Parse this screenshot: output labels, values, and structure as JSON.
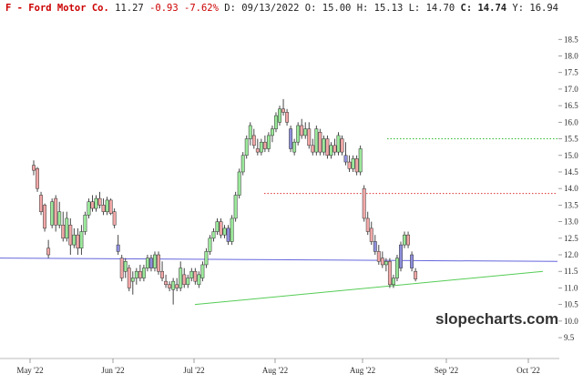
{
  "header": {
    "ticker_prefix": "F - ",
    "name": "Ford Motor Co.",
    "price": "11.27",
    "change": "-0.93",
    "change_pct": "-7.62%",
    "date_label": "D: 09/13/2022",
    "open_label": "O: 15.00",
    "high_label": "H: 15.13",
    "low_label": "L: 14.70",
    "close_label": "C: 14.74",
    "extra_label": "Y: 16.94",
    "name_color": "#cc0000",
    "change_color": "#cc0000"
  },
  "watermark": "slopecharts.com",
  "chart_data": {
    "type": "candlestick",
    "title": "F - Ford Motor Co.",
    "ylim": [
      9.2,
      18.7
    ],
    "y_ticks": [
      "18.5",
      "18.0",
      "17.5",
      "17.0",
      "16.5",
      "16.0",
      "15.5",
      "15.0",
      "14.5",
      "14.0",
      "13.5",
      "13.0",
      "12.5",
      "12.0",
      "11.5",
      "11.0",
      "10.5",
      "10.0",
      "9.5"
    ],
    "x_ticks": [
      "May '22",
      "Jun '22",
      "Jul '22",
      "Aug '22",
      "Aug '22",
      "Sep '22",
      "Oct '22"
    ],
    "grid": false,
    "colors": {
      "up": "#9be89b",
      "down": "#f2a8a8",
      "outside": "#8f8fdd",
      "wick": "#333333"
    },
    "horizontal_lines": [
      {
        "value": 15.5,
        "style": "dotted",
        "color": "#33bb33"
      },
      {
        "value": 13.85,
        "style": "dotted",
        "color": "#dd3333"
      }
    ],
    "trend_lines": [
      {
        "from_index": 0,
        "from_value": 11.9,
        "to_index": 125,
        "to_value": 11.8,
        "color": "#6666dd"
      },
      {
        "from_index": 38,
        "from_value": 10.5,
        "to_index": 114,
        "to_value": 11.5,
        "color": "#55cc55"
      }
    ],
    "candles": [
      {
        "o": 14.7,
        "h": 14.85,
        "l": 14.4,
        "c": 14.55,
        "t": "down"
      },
      {
        "o": 14.6,
        "h": 14.65,
        "l": 13.9,
        "c": 14.0,
        "t": "down"
      },
      {
        "o": 13.8,
        "h": 13.9,
        "l": 13.2,
        "c": 13.3,
        "t": "down"
      },
      {
        "o": 13.5,
        "h": 13.55,
        "l": 12.7,
        "c": 12.8,
        "t": "down"
      },
      {
        "o": 12.2,
        "h": 12.45,
        "l": 11.9,
        "c": 12.0,
        "t": "down"
      },
      {
        "o": 12.9,
        "h": 13.7,
        "l": 12.8,
        "c": 13.6,
        "t": "up"
      },
      {
        "o": 13.7,
        "h": 13.8,
        "l": 12.7,
        "c": 12.9,
        "t": "down"
      },
      {
        "o": 12.9,
        "h": 13.6,
        "l": 12.8,
        "c": 13.3,
        "t": "up"
      },
      {
        "o": 12.9,
        "h": 13.3,
        "l": 12.4,
        "c": 12.5,
        "t": "down"
      },
      {
        "o": 12.5,
        "h": 13.3,
        "l": 12.4,
        "c": 13.1,
        "t": "up"
      },
      {
        "o": 12.9,
        "h": 13.1,
        "l": 12.0,
        "c": 12.3,
        "t": "down"
      },
      {
        "o": 12.3,
        "h": 12.8,
        "l": 12.2,
        "c": 12.6,
        "t": "up"
      },
      {
        "o": 12.6,
        "h": 12.8,
        "l": 12.0,
        "c": 12.2,
        "t": "down"
      },
      {
        "o": 12.2,
        "h": 12.9,
        "l": 12.0,
        "c": 12.7,
        "t": "up"
      },
      {
        "o": 12.7,
        "h": 13.3,
        "l": 12.6,
        "c": 13.2,
        "t": "up"
      },
      {
        "o": 13.2,
        "h": 13.7,
        "l": 13.1,
        "c": 13.6,
        "t": "up"
      },
      {
        "o": 13.6,
        "h": 13.8,
        "l": 13.3,
        "c": 13.4,
        "t": "down"
      },
      {
        "o": 13.4,
        "h": 13.8,
        "l": 13.3,
        "c": 13.7,
        "t": "up"
      },
      {
        "o": 13.7,
        "h": 13.9,
        "l": 13.4,
        "c": 13.5,
        "t": "down"
      },
      {
        "o": 13.5,
        "h": 13.7,
        "l": 13.2,
        "c": 13.3,
        "t": "down"
      },
      {
        "o": 13.3,
        "h": 13.75,
        "l": 13.2,
        "c": 13.65,
        "t": "up"
      },
      {
        "o": 13.65,
        "h": 13.7,
        "l": 13.2,
        "c": 13.25,
        "t": "down"
      },
      {
        "o": 13.3,
        "h": 13.4,
        "l": 12.8,
        "c": 12.9,
        "t": "down"
      },
      {
        "o": 12.3,
        "h": 12.6,
        "l": 12.0,
        "c": 12.1,
        "t": "outside"
      },
      {
        "o": 11.9,
        "h": 12.0,
        "l": 11.2,
        "c": 11.3,
        "t": "down"
      },
      {
        "o": 11.5,
        "h": 11.9,
        "l": 11.3,
        "c": 11.8,
        "t": "up"
      },
      {
        "o": 11.6,
        "h": 11.7,
        "l": 10.9,
        "c": 11.0,
        "t": "down"
      },
      {
        "o": 11.2,
        "h": 11.5,
        "l": 10.8,
        "c": 11.3,
        "t": "up"
      },
      {
        "o": 11.3,
        "h": 11.6,
        "l": 11.1,
        "c": 11.5,
        "t": "up"
      },
      {
        "o": 11.5,
        "h": 11.7,
        "l": 11.2,
        "c": 11.3,
        "t": "down"
      },
      {
        "o": 11.3,
        "h": 11.7,
        "l": 11.2,
        "c": 11.6,
        "t": "up"
      },
      {
        "o": 11.6,
        "h": 12.0,
        "l": 11.5,
        "c": 11.9,
        "t": "up"
      },
      {
        "o": 11.9,
        "h": 12.0,
        "l": 11.5,
        "c": 11.6,
        "t": "outside"
      },
      {
        "o": 11.6,
        "h": 12.1,
        "l": 11.5,
        "c": 12.0,
        "t": "up"
      },
      {
        "o": 12.0,
        "h": 12.1,
        "l": 11.4,
        "c": 11.5,
        "t": "down"
      },
      {
        "o": 11.5,
        "h": 11.8,
        "l": 11.2,
        "c": 11.3,
        "t": "down"
      },
      {
        "o": 11.2,
        "h": 11.4,
        "l": 11.0,
        "c": 11.1,
        "t": "down"
      },
      {
        "o": 11.1,
        "h": 11.2,
        "l": 10.9,
        "c": 11.0,
        "t": "down"
      },
      {
        "o": 10.95,
        "h": 11.3,
        "l": 10.5,
        "c": 11.2,
        "t": "up"
      },
      {
        "o": 11.1,
        "h": 11.3,
        "l": 10.9,
        "c": 11.0,
        "t": "down"
      },
      {
        "o": 11.0,
        "h": 11.8,
        "l": 10.9,
        "c": 11.6,
        "t": "up"
      },
      {
        "o": 11.4,
        "h": 11.6,
        "l": 11.0,
        "c": 11.1,
        "t": "down"
      },
      {
        "o": 11.1,
        "h": 11.4,
        "l": 11.0,
        "c": 11.3,
        "t": "up"
      },
      {
        "o": 11.3,
        "h": 11.6,
        "l": 11.2,
        "c": 11.5,
        "t": "up"
      },
      {
        "o": 11.5,
        "h": 11.6,
        "l": 11.1,
        "c": 11.2,
        "t": "down"
      },
      {
        "o": 11.1,
        "h": 11.5,
        "l": 11.0,
        "c": 11.4,
        "t": "up"
      },
      {
        "o": 11.3,
        "h": 11.8,
        "l": 11.2,
        "c": 11.7,
        "t": "up"
      },
      {
        "o": 11.7,
        "h": 12.2,
        "l": 11.6,
        "c": 12.1,
        "t": "up"
      },
      {
        "o": 12.1,
        "h": 12.6,
        "l": 12.0,
        "c": 12.5,
        "t": "up"
      },
      {
        "o": 12.5,
        "h": 12.8,
        "l": 12.4,
        "c": 12.7,
        "t": "up"
      },
      {
        "o": 12.7,
        "h": 13.1,
        "l": 12.6,
        "c": 13.0,
        "t": "up"
      },
      {
        "o": 13.0,
        "h": 13.1,
        "l": 12.5,
        "c": 12.6,
        "t": "down"
      },
      {
        "o": 12.6,
        "h": 12.9,
        "l": 12.5,
        "c": 12.8,
        "t": "up"
      },
      {
        "o": 12.8,
        "h": 12.9,
        "l": 12.3,
        "c": 12.4,
        "t": "outside"
      },
      {
        "o": 12.4,
        "h": 13.2,
        "l": 12.3,
        "c": 13.1,
        "t": "up"
      },
      {
        "o": 13.1,
        "h": 13.9,
        "l": 13.0,
        "c": 13.8,
        "t": "up"
      },
      {
        "o": 13.8,
        "h": 14.6,
        "l": 13.7,
        "c": 14.5,
        "t": "up"
      },
      {
        "o": 14.5,
        "h": 15.1,
        "l": 14.4,
        "c": 15.0,
        "t": "up"
      },
      {
        "o": 15.0,
        "h": 15.6,
        "l": 14.9,
        "c": 15.5,
        "t": "up"
      },
      {
        "o": 15.5,
        "h": 16.0,
        "l": 15.3,
        "c": 15.9,
        "t": "up"
      },
      {
        "o": 15.6,
        "h": 15.8,
        "l": 15.2,
        "c": 15.3,
        "t": "down"
      },
      {
        "o": 15.2,
        "h": 15.5,
        "l": 15.0,
        "c": 15.1,
        "t": "down"
      },
      {
        "o": 15.1,
        "h": 15.5,
        "l": 15.0,
        "c": 15.4,
        "t": "up"
      },
      {
        "o": 15.4,
        "h": 15.6,
        "l": 15.1,
        "c": 15.2,
        "t": "down"
      },
      {
        "o": 15.2,
        "h": 15.7,
        "l": 15.1,
        "c": 15.6,
        "t": "up"
      },
      {
        "o": 15.6,
        "h": 15.9,
        "l": 15.4,
        "c": 15.8,
        "t": "up"
      },
      {
        "o": 15.8,
        "h": 16.3,
        "l": 15.7,
        "c": 16.2,
        "t": "up"
      },
      {
        "o": 16.0,
        "h": 16.5,
        "l": 15.9,
        "c": 16.4,
        "t": "up"
      },
      {
        "o": 16.4,
        "h": 16.7,
        "l": 16.2,
        "c": 16.3,
        "t": "down"
      },
      {
        "o": 16.3,
        "h": 16.4,
        "l": 15.9,
        "c": 16.0,
        "t": "down"
      },
      {
        "o": 15.8,
        "h": 15.9,
        "l": 15.1,
        "c": 15.2,
        "t": "outside"
      },
      {
        "o": 15.1,
        "h": 15.5,
        "l": 15.0,
        "c": 15.4,
        "t": "up"
      },
      {
        "o": 15.4,
        "h": 16.0,
        "l": 15.3,
        "c": 15.9,
        "t": "up"
      },
      {
        "o": 15.9,
        "h": 16.1,
        "l": 15.5,
        "c": 15.6,
        "t": "down"
      },
      {
        "o": 15.6,
        "h": 16.0,
        "l": 15.5,
        "c": 15.8,
        "t": "up"
      },
      {
        "o": 15.8,
        "h": 16.0,
        "l": 15.2,
        "c": 15.3,
        "t": "down"
      },
      {
        "o": 15.3,
        "h": 15.5,
        "l": 15.0,
        "c": 15.1,
        "t": "down"
      },
      {
        "o": 15.1,
        "h": 15.9,
        "l": 15.0,
        "c": 15.8,
        "t": "up"
      },
      {
        "o": 15.7,
        "h": 15.8,
        "l": 15.0,
        "c": 15.1,
        "t": "down"
      },
      {
        "o": 15.1,
        "h": 15.6,
        "l": 15.0,
        "c": 15.5,
        "t": "up"
      },
      {
        "o": 15.5,
        "h": 15.6,
        "l": 14.9,
        "c": 15.0,
        "t": "down"
      },
      {
        "o": 15.0,
        "h": 15.4,
        "l": 14.9,
        "c": 15.3,
        "t": "up"
      },
      {
        "o": 15.3,
        "h": 15.5,
        "l": 15.0,
        "c": 15.1,
        "t": "down"
      },
      {
        "o": 15.1,
        "h": 15.7,
        "l": 15.0,
        "c": 15.6,
        "t": "up"
      },
      {
        "o": 15.5,
        "h": 15.6,
        "l": 15.0,
        "c": 15.1,
        "t": "down"
      },
      {
        "o": 15.0,
        "h": 15.4,
        "l": 14.7,
        "c": 14.8,
        "t": "outside"
      },
      {
        "o": 14.8,
        "h": 15.0,
        "l": 14.5,
        "c": 14.6,
        "t": "down"
      },
      {
        "o": 14.6,
        "h": 15.0,
        "l": 14.5,
        "c": 14.9,
        "t": "up"
      },
      {
        "o": 14.9,
        "h": 15.0,
        "l": 14.4,
        "c": 14.5,
        "t": "down"
      },
      {
        "o": 14.5,
        "h": 15.3,
        "l": 14.4,
        "c": 15.2,
        "t": "up"
      },
      {
        "o": 14.0,
        "h": 14.1,
        "l": 13.0,
        "c": 13.1,
        "t": "down"
      },
      {
        "o": 13.1,
        "h": 13.3,
        "l": 12.6,
        "c": 12.7,
        "t": "down"
      },
      {
        "o": 12.8,
        "h": 13.0,
        "l": 12.3,
        "c": 12.4,
        "t": "down"
      },
      {
        "o": 12.4,
        "h": 12.6,
        "l": 12.0,
        "c": 12.1,
        "t": "outside"
      },
      {
        "o": 12.1,
        "h": 12.3,
        "l": 11.7,
        "c": 11.8,
        "t": "down"
      },
      {
        "o": 11.9,
        "h": 12.1,
        "l": 11.6,
        "c": 11.7,
        "t": "down"
      },
      {
        "o": 11.7,
        "h": 11.9,
        "l": 11.5,
        "c": 11.8,
        "t": "up"
      },
      {
        "o": 11.8,
        "h": 11.9,
        "l": 11.0,
        "c": 11.1,
        "t": "down"
      },
      {
        "o": 11.1,
        "h": 11.4,
        "l": 11.0,
        "c": 11.3,
        "t": "up"
      },
      {
        "o": 11.3,
        "h": 12.0,
        "l": 11.2,
        "c": 11.9,
        "t": "up"
      },
      {
        "o": 11.6,
        "h": 12.4,
        "l": 11.5,
        "c": 12.3,
        "t": "outside"
      },
      {
        "o": 12.3,
        "h": 12.7,
        "l": 12.2,
        "c": 12.6,
        "t": "up"
      },
      {
        "o": 12.6,
        "h": 12.7,
        "l": 12.2,
        "c": 12.3,
        "t": "down"
      },
      {
        "o": 12.0,
        "h": 12.1,
        "l": 11.5,
        "c": 11.6,
        "t": "outside"
      },
      {
        "o": 11.5,
        "h": 11.6,
        "l": 11.2,
        "c": 11.27,
        "t": "down"
      }
    ]
  }
}
